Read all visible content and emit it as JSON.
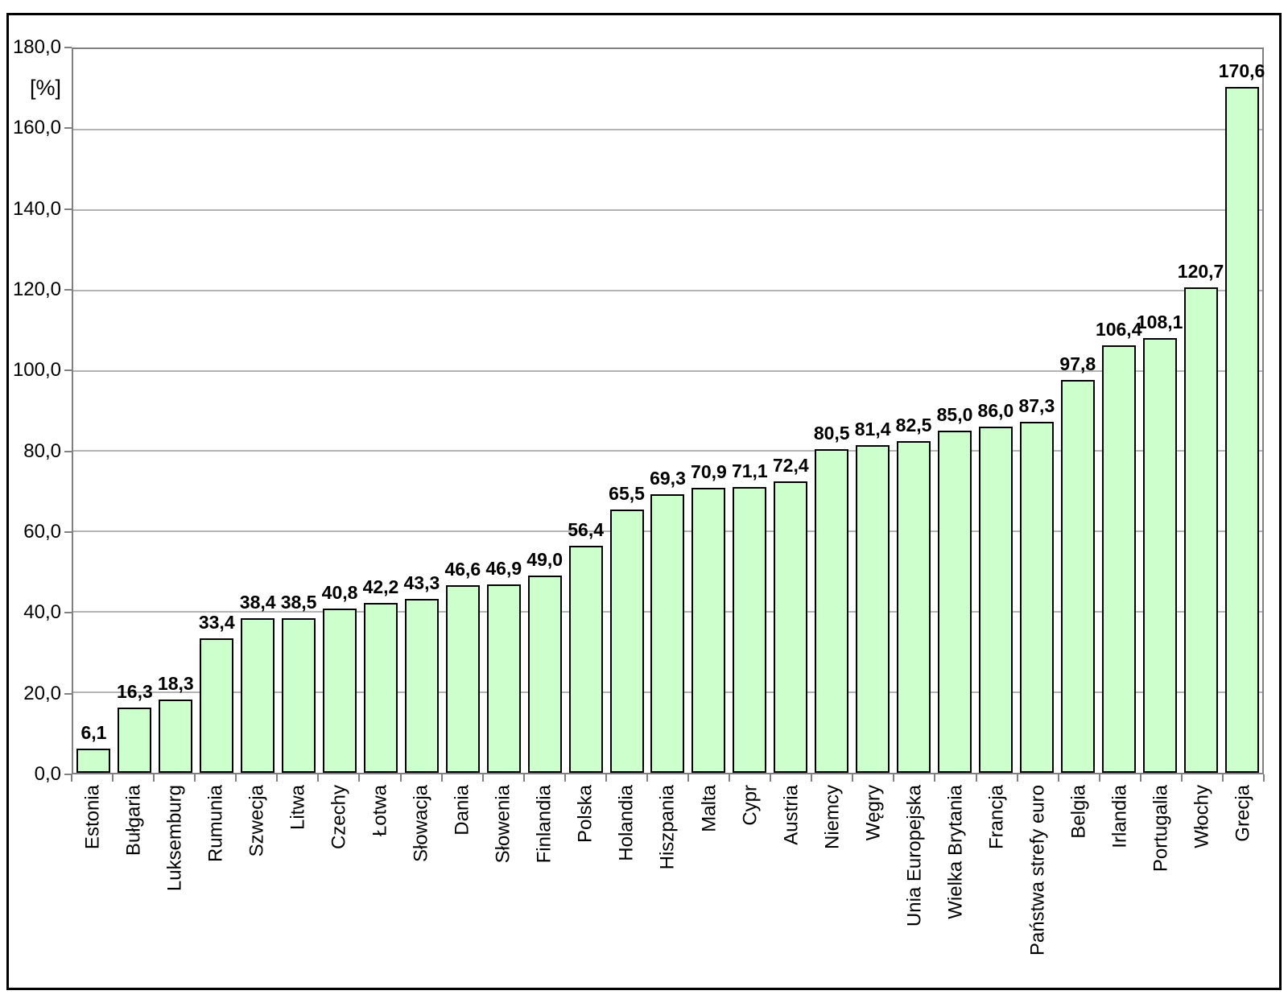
{
  "chart_data": {
    "type": "bar",
    "title": "",
    "xlabel": "",
    "ylabel": "[%]",
    "ylim": [
      0,
      180
    ],
    "y_tick_step": 20,
    "y_tick_labels": [
      "0,0",
      "20,0",
      "40,0",
      "60,0",
      "80,0",
      "100,0",
      "120,0",
      "140,0",
      "160,0",
      "180,0"
    ],
    "grid": true,
    "legend": false,
    "categories": [
      "Estonia",
      "Bułgaria",
      "Luksemburg",
      "Rumunia",
      "Szwecja",
      "Litwa",
      "Czechy",
      "Łotwa",
      "Słowacja",
      "Dania",
      "Słowenia",
      "Finlandia",
      "Polska",
      "Holandia",
      "Hiszpania",
      "Malta",
      "Cypr",
      "Austria",
      "Niemcy",
      "Węgry",
      "Unia Europejska",
      "Wielka Brytania",
      "Francja",
      "Państwa strefy euro",
      "Belgia",
      "Irlandia",
      "Portugalia",
      "Włochy",
      "Grecja"
    ],
    "values": [
      6.1,
      16.3,
      18.3,
      33.4,
      38.4,
      38.5,
      40.8,
      42.2,
      43.3,
      46.6,
      46.9,
      49.0,
      56.4,
      65.5,
      69.3,
      70.9,
      71.1,
      72.4,
      80.5,
      81.4,
      82.5,
      85.0,
      86.0,
      87.3,
      97.8,
      106.4,
      108.1,
      120.7,
      170.6
    ],
    "value_labels": [
      "6,1",
      "16,3",
      "18,3",
      "33,4",
      "38,4",
      "38,5",
      "40,8",
      "42,2",
      "43,3",
      "46,6",
      "46,9",
      "49,0",
      "56,4",
      "65,5",
      "69,3",
      "70,9",
      "71,1",
      "72,4",
      "80,5",
      "81,4",
      "82,5",
      "85,0",
      "86,0",
      "87,3",
      "97,8",
      "106,4",
      "108,1",
      "120,7",
      "170,6"
    ],
    "colors": {
      "bar_fill": "#CCFFCC",
      "bar_border": "#000000",
      "axis": "#808080",
      "gridline": "#B4B4B4",
      "text": "#000000",
      "background": "#FFFFFF",
      "frame_border": "#000000"
    }
  }
}
